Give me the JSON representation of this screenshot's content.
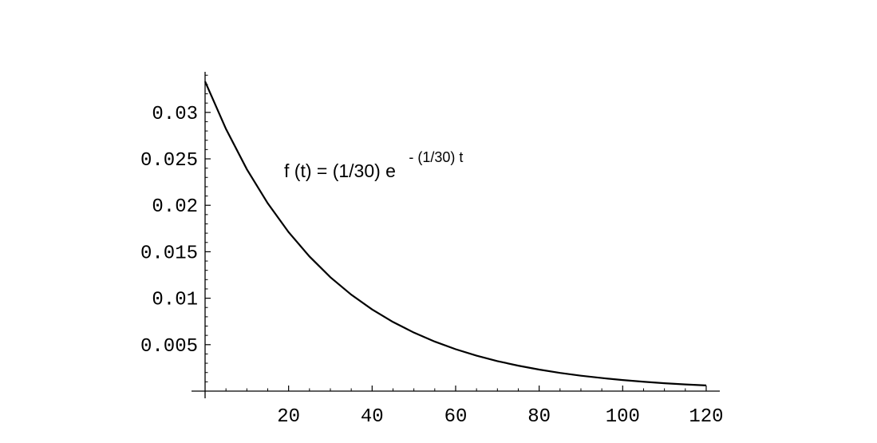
{
  "chart_data": {
    "type": "line",
    "title": "",
    "xlabel": "",
    "ylabel": "",
    "xlim": [
      0,
      123
    ],
    "ylim": [
      0,
      0.0345
    ],
    "grid": false,
    "x_ticks": [
      20,
      40,
      60,
      80,
      100,
      120
    ],
    "x_tick_labels": [
      "20",
      "40",
      "60",
      "80",
      "100",
      "120"
    ],
    "y_ticks": [
      0.005,
      0.01,
      0.015,
      0.02,
      0.025,
      0.03
    ],
    "y_tick_labels": [
      "0.005",
      "0.01",
      "0.015",
      "0.02",
      "0.025",
      "0.03"
    ],
    "annotation": {
      "main": "f (t) = (1/30) e",
      "superscript": "- (1/30) t"
    },
    "series": [
      {
        "function": "(1/30) e^(-(1/30) t)",
        "x": [
          0,
          5,
          10,
          15,
          20,
          25,
          30,
          35,
          40,
          45,
          50,
          55,
          60,
          65,
          70,
          75,
          80,
          85,
          90,
          95,
          100,
          105,
          110,
          115,
          120
        ],
        "y": [
          0.03333,
          0.02822,
          0.02388,
          0.02022,
          0.01711,
          0.01449,
          0.01226,
          0.01038,
          0.00879,
          0.00744,
          0.0063,
          0.00533,
          0.00451,
          0.00382,
          0.00323,
          0.00274,
          0.00232,
          0.00196,
          0.00166,
          0.00141,
          0.00119,
          0.00101,
          0.00085,
          0.00072,
          0.00061
        ]
      }
    ]
  }
}
